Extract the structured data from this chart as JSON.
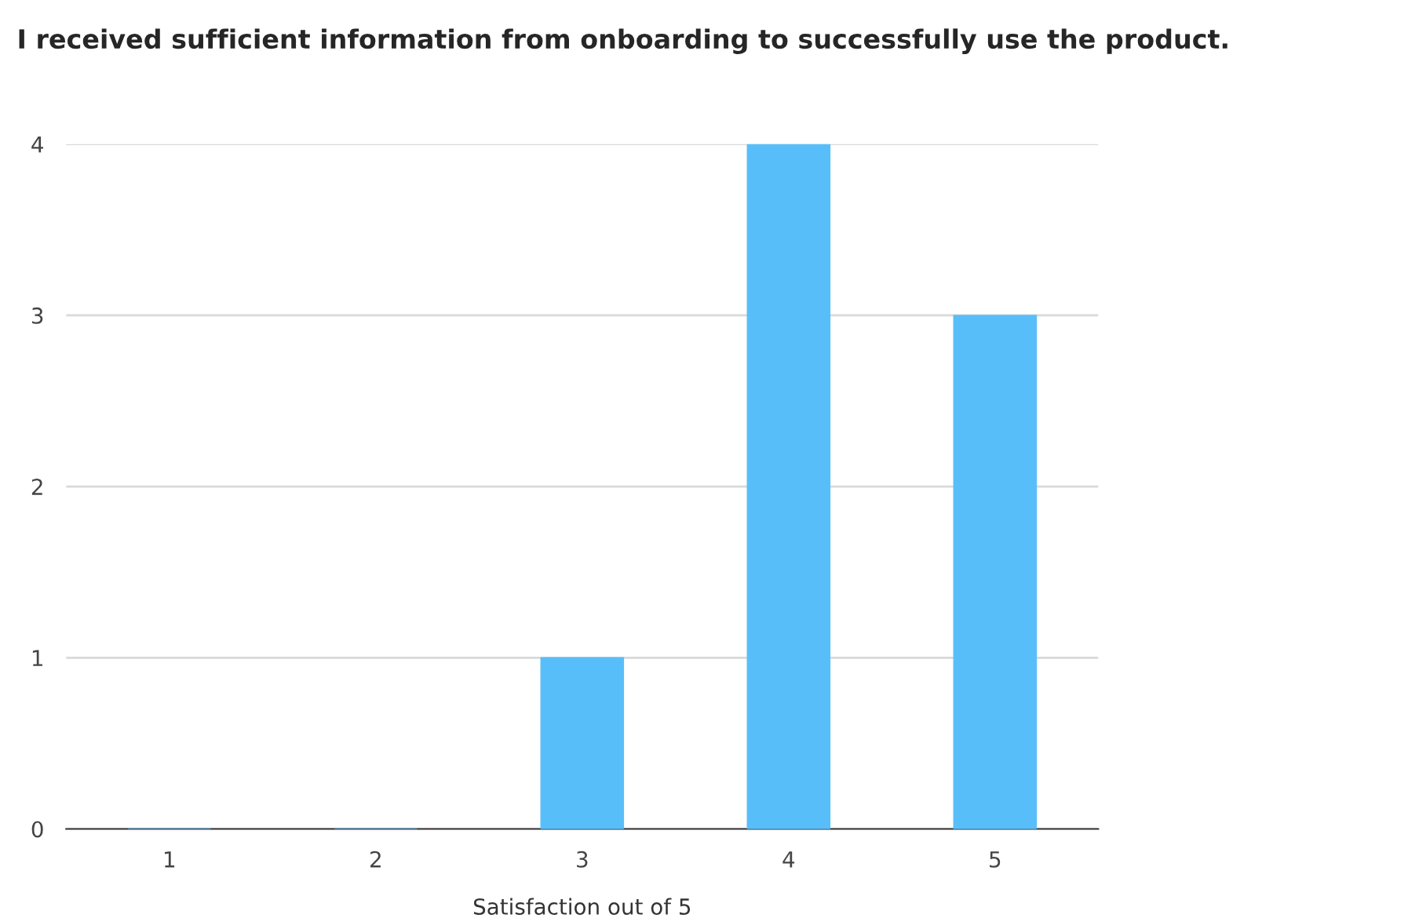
{
  "chart_data": {
    "type": "bar",
    "title": "I received sufficient information from onboarding to successfully use the product.",
    "xlabel": "Satisfaction out of 5",
    "categories": [
      "1",
      "2",
      "3",
      "4",
      "5"
    ],
    "values": [
      0,
      0,
      1,
      4,
      3
    ],
    "color": "#58bef9",
    "ylim": [
      0,
      4
    ],
    "yticks": [
      0,
      1,
      2,
      3,
      4
    ],
    "grid": "y",
    "legend": false
  }
}
